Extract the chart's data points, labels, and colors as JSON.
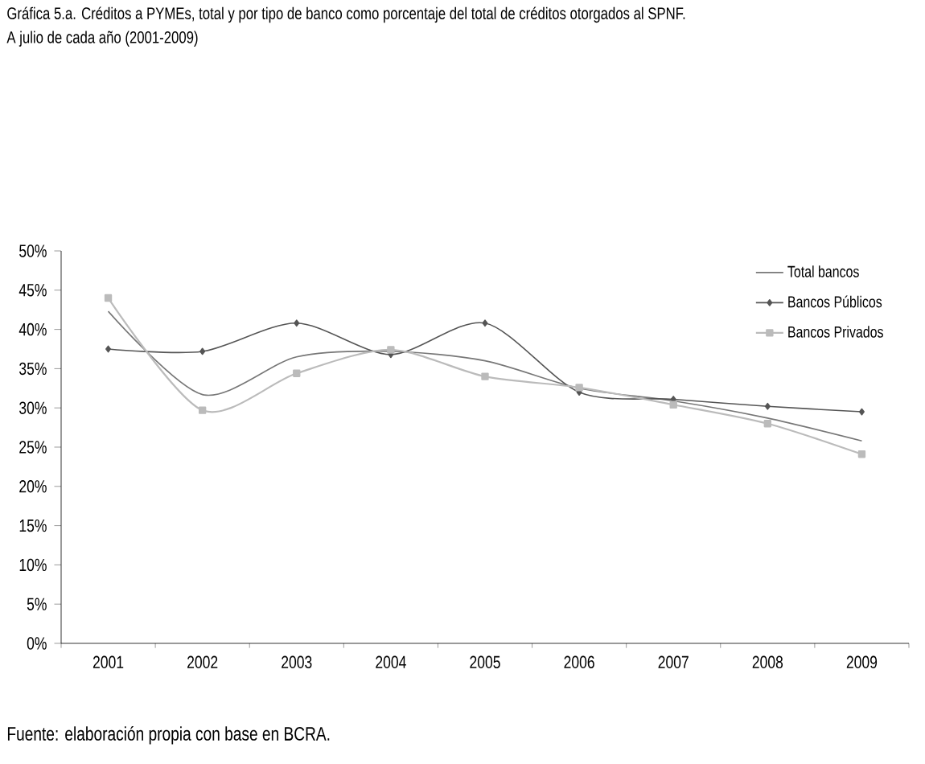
{
  "chart_data": {
    "type": "line",
    "title": "Gráfica 5.a. Créditos a PYMEs, total y por tipo de banco como porcentaje del total de créditos otorgados al SPNF.",
    "subtitle": "A julio de cada año (2001-2009)",
    "categories": [
      "2001",
      "2002",
      "2003",
      "2004",
      "2005",
      "2006",
      "2007",
      "2008",
      "2009"
    ],
    "series": [
      {
        "name": "Total bancos",
        "color": "#777777",
        "marker": "none",
        "values": [
          42.3,
          31.7,
          36.5,
          37.2,
          36.0,
          32.5,
          30.9,
          28.7,
          25.8
        ]
      },
      {
        "name": "Bancos Públicos",
        "color": "#555555",
        "marker": "diamond",
        "values": [
          37.5,
          37.2,
          40.8,
          36.8,
          40.8,
          32.0,
          31.1,
          30.2,
          29.5
        ]
      },
      {
        "name": "Bancos Privados",
        "color": "#bbbbbb",
        "marker": "square",
        "values": [
          44.0,
          29.7,
          34.4,
          37.4,
          34.0,
          32.6,
          30.4,
          28.0,
          24.1
        ]
      }
    ],
    "ylim": [
      0,
      50
    ],
    "yticks": [
      {
        "value": 0,
        "label": "0%"
      },
      {
        "value": 5,
        "label": "5%"
      },
      {
        "value": 10,
        "label": "10%"
      },
      {
        "value": 15,
        "label": "15%"
      },
      {
        "value": 20,
        "label": "20%"
      },
      {
        "value": 25,
        "label": "25%"
      },
      {
        "value": 30,
        "label": "30%"
      },
      {
        "value": 35,
        "label": "35%"
      },
      {
        "value": 40,
        "label": "40%"
      },
      {
        "value": 45,
        "label": "45%"
      },
      {
        "value": 50,
        "label": "50%"
      }
    ],
    "legend": "top right",
    "grid": false,
    "line_style": "solid",
    "annotations": [
      "Fuente: elaboración propia con base en BCRA."
    ]
  }
}
